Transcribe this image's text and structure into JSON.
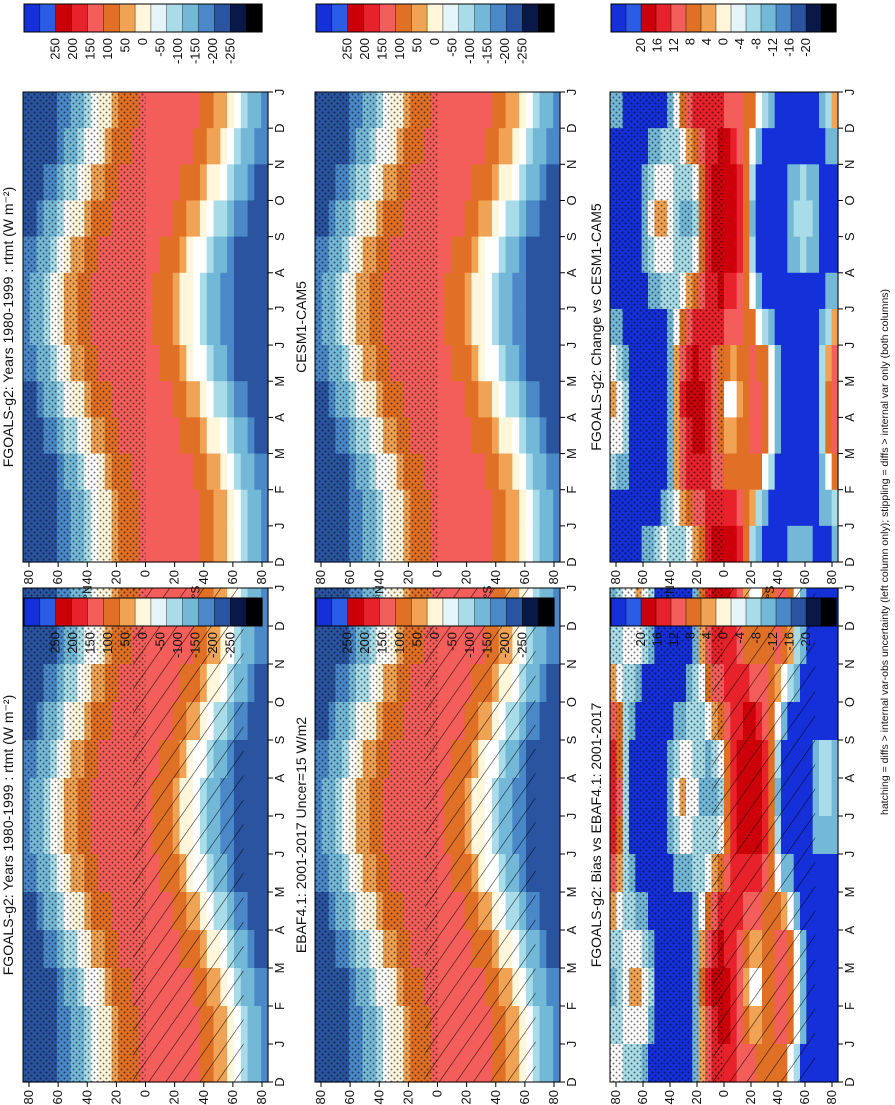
{
  "figure": {
    "caption": "hatching = diffs > internal var-obs uncertainty (left column only); stippling = diffs > internal var only (both columns)"
  },
  "chart_data": [
    {
      "type": "heatmap",
      "title": "FGOALS-g2: Years 1980-1999 : rtmt (W m⁻²)",
      "x": [
        "D",
        "J",
        "F",
        "M",
        "A",
        "M",
        "J",
        "J",
        "A",
        "S",
        "O",
        "N",
        "D",
        "J"
      ],
      "y": [
        "80",
        "60",
        "40",
        "20",
        "0",
        "20",
        "40",
        "60",
        "80"
      ],
      "hemisphere_labels": [
        "°N",
        "°S"
      ],
      "hatching": true,
      "stippling": true,
      "colorbar": {
        "ticks": [
          "250",
          "200",
          "150",
          "100",
          "50",
          "0",
          "-50",
          "-100",
          "-150",
          "-200",
          "-250"
        ],
        "colors": [
          "#1530d8",
          "#2a5ce6",
          "#cc0008",
          "#e8222b",
          "#f35e5b",
          "#e07026",
          "#f0a354",
          "#fff6dc",
          "#e4f4f8",
          "#a8dce8",
          "#74b8d8",
          "#4a88c8",
          "#2a54a0",
          "#0a1848",
          "#000000"
        ]
      }
    },
    {
      "type": "heatmap",
      "title": "FGOALS-g2: Years 1980-1999 : rtmt (W m⁻²)",
      "x": [
        "D",
        "J",
        "F",
        "M",
        "A",
        "M",
        "J",
        "J",
        "A",
        "S",
        "O",
        "N",
        "D",
        "J"
      ],
      "y": [
        "80",
        "60",
        "40",
        "20",
        "0",
        "20",
        "40",
        "60",
        "80"
      ],
      "hemisphere_labels": [
        "°N",
        "°S"
      ],
      "hatching": false,
      "stippling": true,
      "colorbar": {
        "ticks": [
          "250",
          "200",
          "150",
          "100",
          "50",
          "0",
          "-50",
          "-100",
          "-150",
          "-200",
          "-250"
        ],
        "colors": [
          "#1530d8",
          "#2a5ce6",
          "#cc0008",
          "#e8222b",
          "#f35e5b",
          "#e07026",
          "#f0a354",
          "#fff6dc",
          "#e4f4f8",
          "#a8dce8",
          "#74b8d8",
          "#4a88c8",
          "#2a54a0",
          "#0a1848",
          "#000000"
        ]
      }
    },
    {
      "type": "heatmap",
      "title": "EBAF4.1: 2001-2017 Uncer=15 W/m2",
      "x": [
        "D",
        "J",
        "F",
        "M",
        "A",
        "M",
        "J",
        "J",
        "A",
        "S",
        "O",
        "N",
        "D",
        "J"
      ],
      "y": [
        "80",
        "60",
        "40",
        "20",
        "0",
        "20",
        "40",
        "60",
        "80"
      ],
      "hemisphere_labels": [
        "°N",
        "°S"
      ],
      "hatching": true,
      "stippling": true,
      "colorbar": {
        "ticks": [
          "250",
          "200",
          "150",
          "100",
          "50",
          "0",
          "-50",
          "-100",
          "-150",
          "-200",
          "-250"
        ],
        "colors": [
          "#1530d8",
          "#2a5ce6",
          "#cc0008",
          "#e8222b",
          "#f35e5b",
          "#e07026",
          "#f0a354",
          "#fff6dc",
          "#e4f4f8",
          "#a8dce8",
          "#74b8d8",
          "#4a88c8",
          "#2a54a0",
          "#0a1848",
          "#000000"
        ]
      }
    },
    {
      "type": "heatmap",
      "title": "CESM1-CAM5",
      "x": [
        "D",
        "J",
        "F",
        "M",
        "A",
        "M",
        "J",
        "J",
        "A",
        "S",
        "O",
        "N",
        "D",
        "J"
      ],
      "y": [
        "80",
        "60",
        "40",
        "20",
        "0",
        "20",
        "40",
        "60",
        "80"
      ],
      "hemisphere_labels": [
        "°N",
        "°S"
      ],
      "hatching": false,
      "stippling": true,
      "colorbar": {
        "ticks": [
          "250",
          "200",
          "150",
          "100",
          "50",
          "0",
          "-50",
          "-100",
          "-150",
          "-200",
          "-250"
        ],
        "colors": [
          "#1530d8",
          "#2a5ce6",
          "#cc0008",
          "#e8222b",
          "#f35e5b",
          "#e07026",
          "#f0a354",
          "#fff6dc",
          "#e4f4f8",
          "#a8dce8",
          "#74b8d8",
          "#4a88c8",
          "#2a54a0",
          "#0a1848",
          "#000000"
        ]
      }
    },
    {
      "type": "heatmap",
      "title": "FGOALS-g2: Bias vs EBAF4.1: 2001-2017",
      "x": [
        "D",
        "J",
        "F",
        "M",
        "A",
        "M",
        "J",
        "J",
        "A",
        "S",
        "O",
        "N",
        "D",
        "J"
      ],
      "y": [
        "80",
        "60",
        "40",
        "20",
        "0",
        "20",
        "40",
        "60",
        "80"
      ],
      "hemisphere_labels": [
        "°N",
        "°S"
      ],
      "hatching": true,
      "stippling": true,
      "colorbar": {
        "ticks": [
          "20",
          "16",
          "12",
          "8",
          "4",
          "0",
          "-4",
          "-8",
          "-12",
          "-16",
          "-20"
        ],
        "colors": [
          "#1530d8",
          "#2a5ce6",
          "#cc0008",
          "#e8222b",
          "#f35e5b",
          "#e07026",
          "#f0a354",
          "#fff6dc",
          "#e4f4f8",
          "#a8dce8",
          "#74b8d8",
          "#4a88c8",
          "#2a54a0",
          "#0a1848",
          "#000000"
        ]
      }
    },
    {
      "type": "heatmap",
      "title": "FGOALS-g2: Change vs CESM1-CAM5",
      "x": [
        "D",
        "J",
        "F",
        "M",
        "A",
        "M",
        "J",
        "J",
        "A",
        "S",
        "O",
        "N",
        "D",
        "J"
      ],
      "y": [
        "80",
        "60",
        "40",
        "20",
        "0",
        "20",
        "40",
        "60",
        "80"
      ],
      "hemisphere_labels": [
        "°N",
        "°S"
      ],
      "hatching": false,
      "stippling": true,
      "colorbar": {
        "ticks": [
          "20",
          "16",
          "12",
          "8",
          "4",
          "0",
          "-4",
          "-8",
          "-12",
          "-16",
          "-20"
        ],
        "colors": [
          "#1530d8",
          "#2a5ce6",
          "#cc0008",
          "#e8222b",
          "#f35e5b",
          "#e07026",
          "#f0a354",
          "#fff6dc",
          "#e4f4f8",
          "#a8dce8",
          "#74b8d8",
          "#4a88c8",
          "#2a54a0",
          "#0a1848",
          "#000000"
        ]
      }
    }
  ]
}
